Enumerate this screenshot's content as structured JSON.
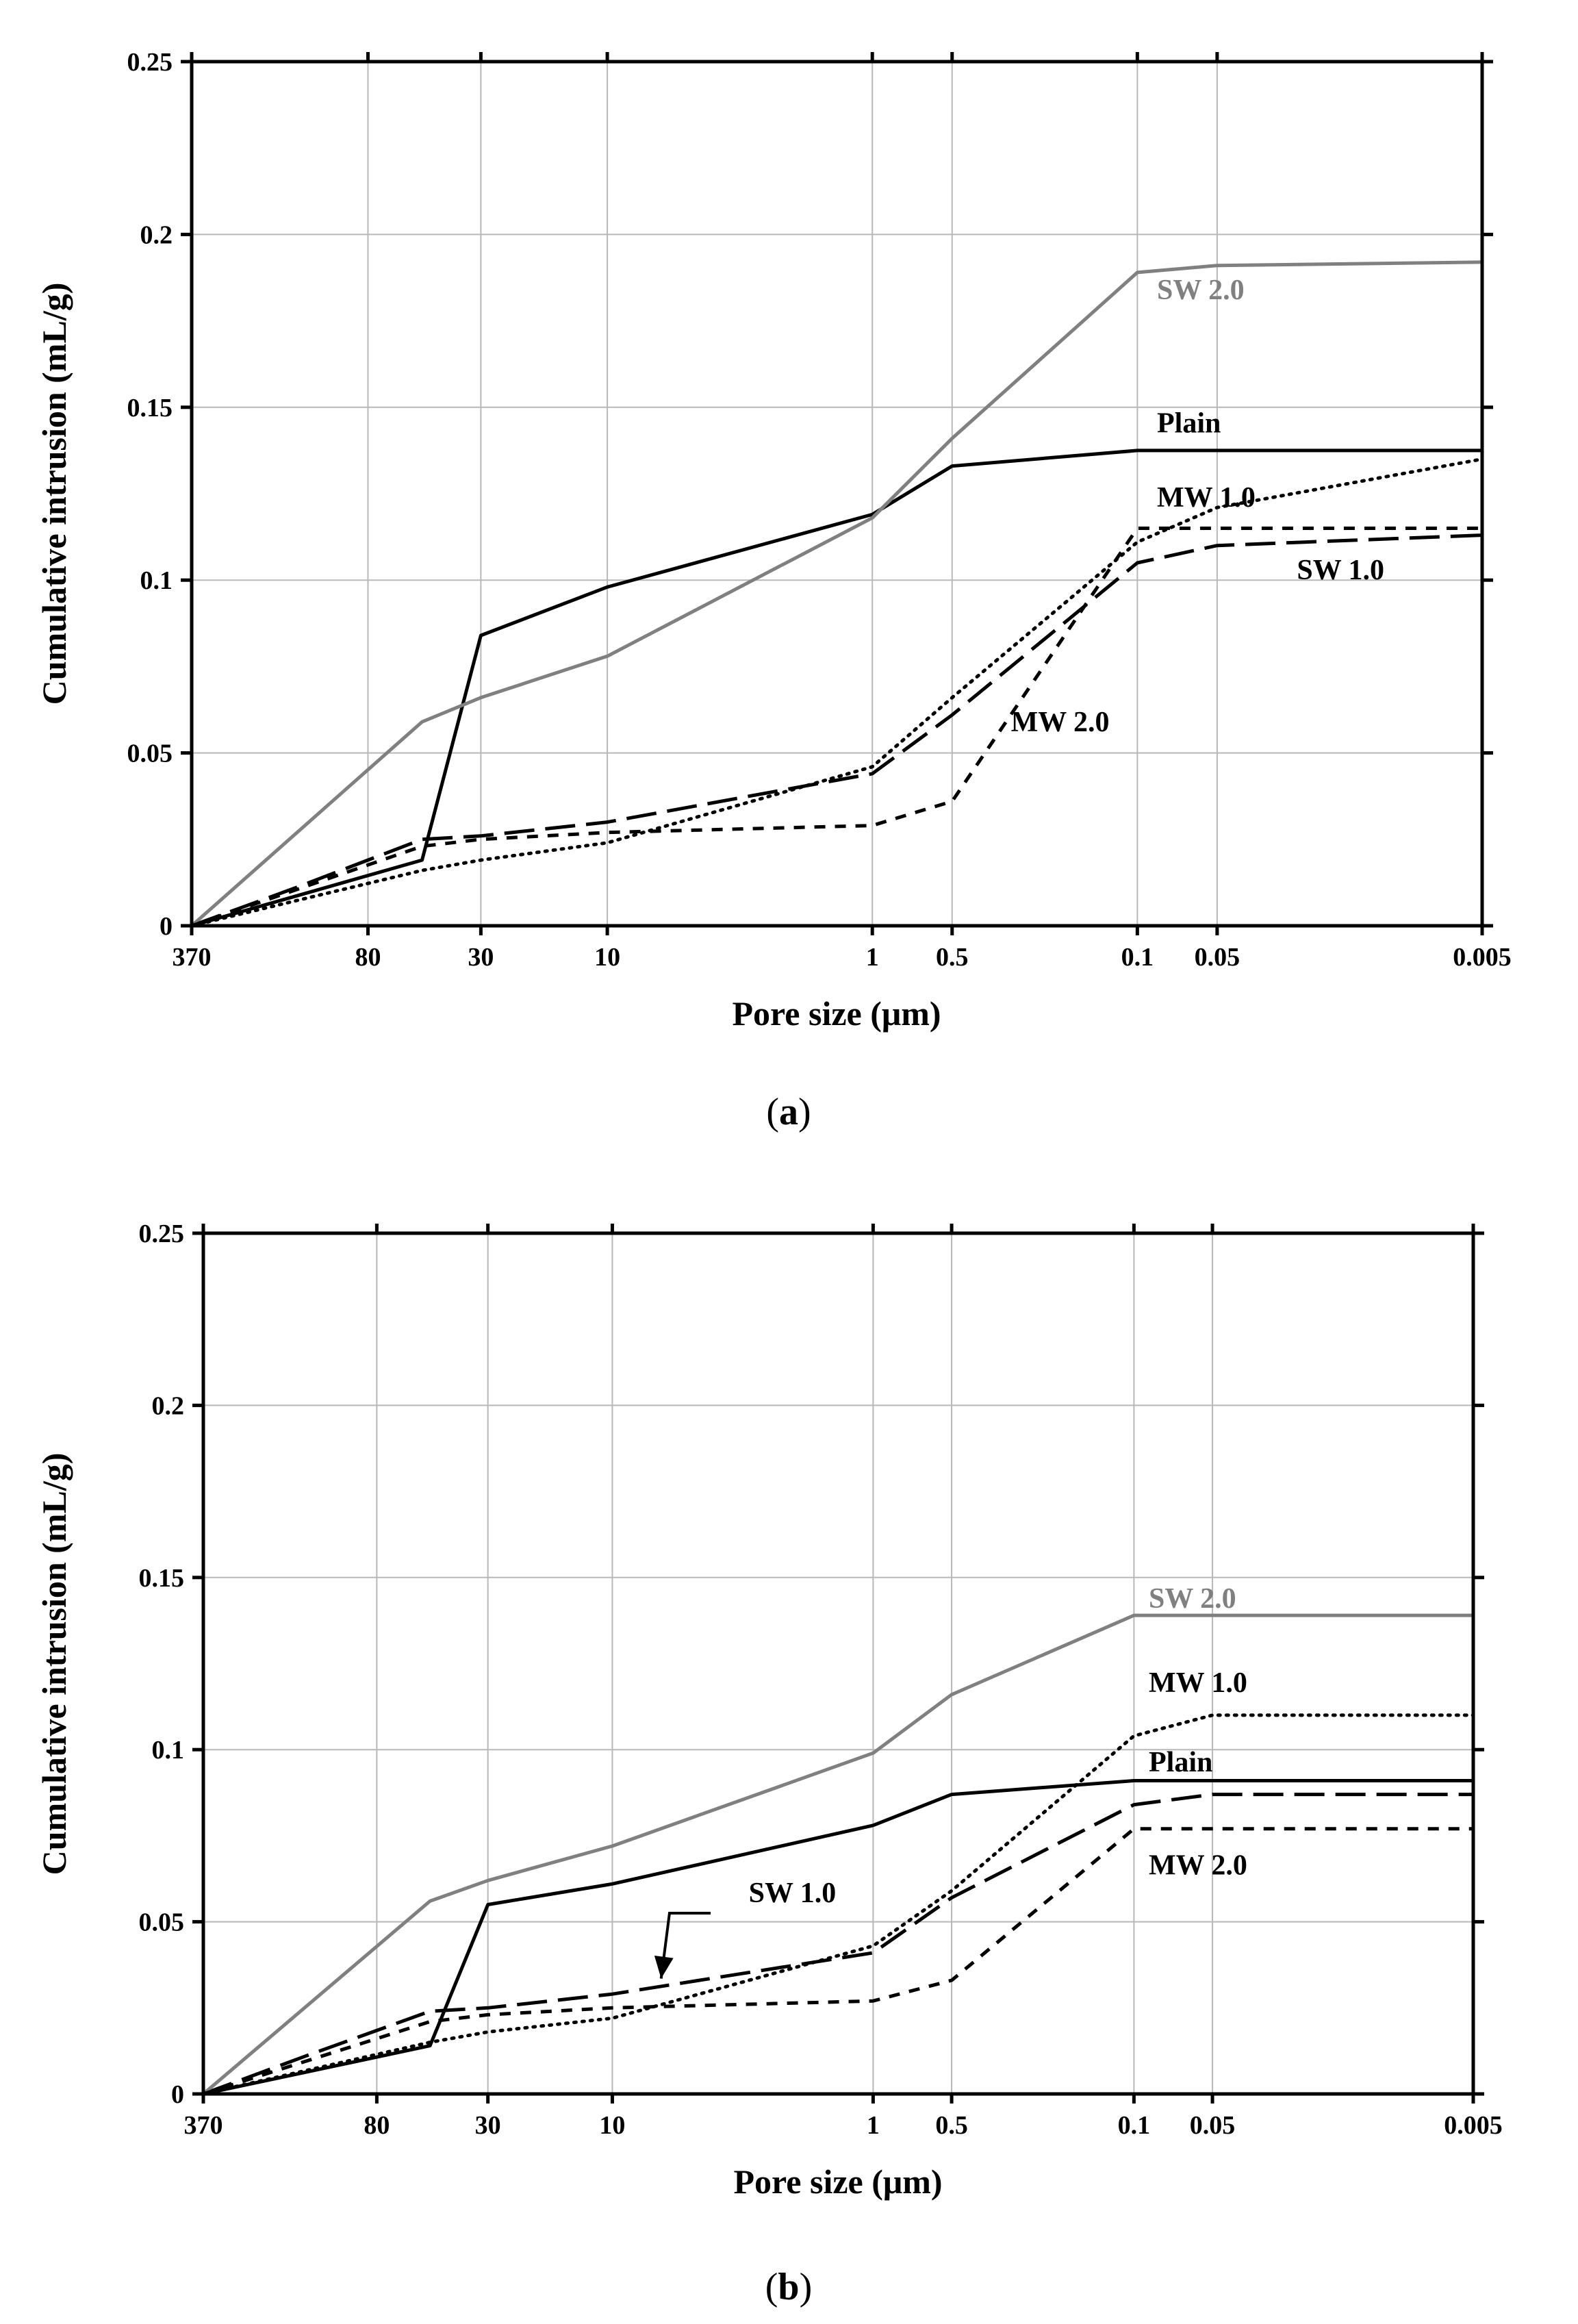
{
  "chart_data": [
    {
      "type": "line",
      "panel_label": "a",
      "xlabel": "Pore size (μm)",
      "ylabel": "Cumulative intrusion (mL/g)",
      "x_scale": "log, reversed",
      "xlim": [
        370,
        0.005
      ],
      "ylim": [
        0,
        0.25
      ],
      "xticks": [
        {
          "value": 370,
          "label": "370"
        },
        {
          "value": 80,
          "label": "80"
        },
        {
          "value": 30,
          "label": "30"
        },
        {
          "value": 10,
          "label": "10"
        },
        {
          "value": 1,
          "label": "1"
        },
        {
          "value": 0.5,
          "label": "0.5"
        },
        {
          "value": 0.1,
          "label": "0.1"
        },
        {
          "value": 0.05,
          "label": "0.05"
        },
        {
          "value": 0.005,
          "label": "0.005"
        }
      ],
      "yticks": [
        {
          "value": 0,
          "label": "0"
        },
        {
          "value": 0.05,
          "label": "0.05"
        },
        {
          "value": 0.1,
          "label": "0.1"
        },
        {
          "value": 0.15,
          "label": "0.15"
        },
        {
          "value": 0.2,
          "label": "0.2"
        },
        {
          "value": 0.25,
          "label": "0.25"
        }
      ],
      "series": [
        {
          "name": "Plain",
          "label": "Plain",
          "color": "#000000",
          "dash": "solid",
          "x": [
            370,
            50,
            30,
            10,
            1,
            0.5,
            0.1,
            0.05,
            0.005
          ],
          "y": [
            0,
            0.019,
            0.084,
            0.098,
            0.119,
            0.133,
            0.1375,
            0.1375,
            0.1375
          ],
          "label_at": {
            "x": 0.006,
            "y": 0.1455
          }
        },
        {
          "name": "SW 1.0",
          "label": "SW 1.0",
          "color": "#000000",
          "dash": "longdash",
          "x": [
            370,
            150,
            50,
            30,
            10,
            1,
            0.5,
            0.1,
            0.05,
            0.005
          ],
          "y": [
            0,
            0.011,
            0.025,
            0.026,
            0.03,
            0.044,
            0.061,
            0.105,
            0.11,
            0.113
          ],
          "label_at": {
            "x": 0.025,
            "y": 0.103
          }
        },
        {
          "name": "SW 2.0",
          "label": "SW 2.0",
          "color": "#808080",
          "dash": "solid",
          "x": [
            370,
            50,
            30,
            10,
            1,
            0.5,
            0.1,
            0.05,
            0.005
          ],
          "y": [
            0,
            0.059,
            0.066,
            0.078,
            0.118,
            0.141,
            0.189,
            0.191,
            0.192
          ],
          "label_at": {
            "x": 0.006,
            "y": 0.184
          }
        },
        {
          "name": "MW 1.0",
          "label": "MW 1.0",
          "color": "#000000",
          "dash": "dotted",
          "x": [
            370,
            50,
            30,
            10,
            1,
            0.5,
            0.1,
            0.05,
            0.005
          ],
          "y": [
            0,
            0.016,
            0.019,
            0.024,
            0.046,
            0.066,
            0.111,
            0.121,
            0.135
          ],
          "label_at": {
            "x": 0.006,
            "y": 0.124
          }
        },
        {
          "name": "MW 2.0",
          "label": "MW 2.0",
          "color": "#000000",
          "dash": "shortdash",
          "x": [
            370,
            50,
            30,
            10,
            1,
            0.5,
            0.1,
            0.05,
            0.005
          ],
          "y": [
            0,
            0.023,
            0.025,
            0.027,
            0.029,
            0.036,
            0.115,
            0.115,
            0.115
          ],
          "label_at": {
            "x": 0.3,
            "y": 0.059
          }
        }
      ]
    },
    {
      "type": "line",
      "panel_label": "b",
      "xlabel": "Pore size (μm)",
      "ylabel": "Cumulative intrusion (mL/g)",
      "x_scale": "log, reversed",
      "xlim": [
        370,
        0.005
      ],
      "ylim": [
        0,
        0.25
      ],
      "xticks": [
        {
          "value": 370,
          "label": "370"
        },
        {
          "value": 80,
          "label": "80"
        },
        {
          "value": 30,
          "label": "30"
        },
        {
          "value": 10,
          "label": "10"
        },
        {
          "value": 1,
          "label": "1"
        },
        {
          "value": 0.5,
          "label": "0.5"
        },
        {
          "value": 0.1,
          "label": "0.1"
        },
        {
          "value": 0.05,
          "label": "0.05"
        },
        {
          "value": 0.005,
          "label": "0.005"
        }
      ],
      "yticks": [
        {
          "value": 0,
          "label": "0"
        },
        {
          "value": 0.05,
          "label": "0.05"
        },
        {
          "value": 0.1,
          "label": "0.1"
        },
        {
          "value": 0.15,
          "label": "0.15"
        },
        {
          "value": 0.2,
          "label": "0.2"
        },
        {
          "value": 0.25,
          "label": "0.25"
        }
      ],
      "series": [
        {
          "name": "Plain",
          "label": "Plain",
          "color": "#000000",
          "dash": "solid",
          "x": [
            370,
            50,
            30,
            10,
            1,
            0.5,
            0.1,
            0.05,
            0.005
          ],
          "y": [
            0,
            0.014,
            0.055,
            0.061,
            0.078,
            0.087,
            0.091,
            0.091,
            0.091
          ],
          "label_at": {
            "x": 0.006,
            "y": 0.0965
          }
        },
        {
          "name": "SW 1.0",
          "label": "SW 1.0",
          "color": "#000000",
          "dash": "longdash",
          "x": [
            370,
            150,
            50,
            30,
            10,
            1,
            0.5,
            0.1,
            0.05,
            0.005
          ],
          "y": [
            0,
            0.011,
            0.024,
            0.025,
            0.029,
            0.041,
            0.057,
            0.084,
            0.087,
            0.087
          ],
          "label_at": {
            "x": 3.0,
            "y": 0.0585
          },
          "arrow": {
            "from": {
              "x": 4.2,
              "y": 0.0525
            },
            "to": {
              "x": 6.5,
              "y": 0.0335
            }
          }
        },
        {
          "name": "SW 2.0",
          "label": "SW 2.0",
          "color": "#808080",
          "dash": "solid",
          "x": [
            370,
            50,
            30,
            10,
            1,
            0.5,
            0.1,
            0.05,
            0.005
          ],
          "y": [
            0,
            0.056,
            0.062,
            0.072,
            0.099,
            0.116,
            0.139,
            0.139,
            0.139
          ],
          "label_at": {
            "x": 0.006,
            "y": 0.144
          }
        },
        {
          "name": "MW 1.0",
          "label": "MW 1.0",
          "color": "#000000",
          "dash": "dotted",
          "x": [
            370,
            50,
            30,
            10,
            1,
            0.5,
            0.1,
            0.05,
            0.005
          ],
          "y": [
            0,
            0.015,
            0.018,
            0.022,
            0.043,
            0.059,
            0.104,
            0.11,
            0.11
          ],
          "label_at": {
            "x": 0.006,
            "y": 0.1195
          }
        },
        {
          "name": "MW 2.0",
          "label": "MW 2.0",
          "color": "#000000",
          "dash": "shortdash",
          "x": [
            370,
            50,
            30,
            10,
            1,
            0.5,
            0.1,
            0.05,
            0.005
          ],
          "y": [
            0,
            0.021,
            0.023,
            0.025,
            0.027,
            0.033,
            0.077,
            0.077,
            0.077
          ],
          "label_at": {
            "x": 0.006,
            "y": 0.0665
          }
        }
      ]
    }
  ],
  "captions": {
    "a": {
      "open": "(",
      "letter": "a",
      "close": ")"
    },
    "b": {
      "open": "(",
      "letter": "b",
      "close": ")"
    }
  }
}
